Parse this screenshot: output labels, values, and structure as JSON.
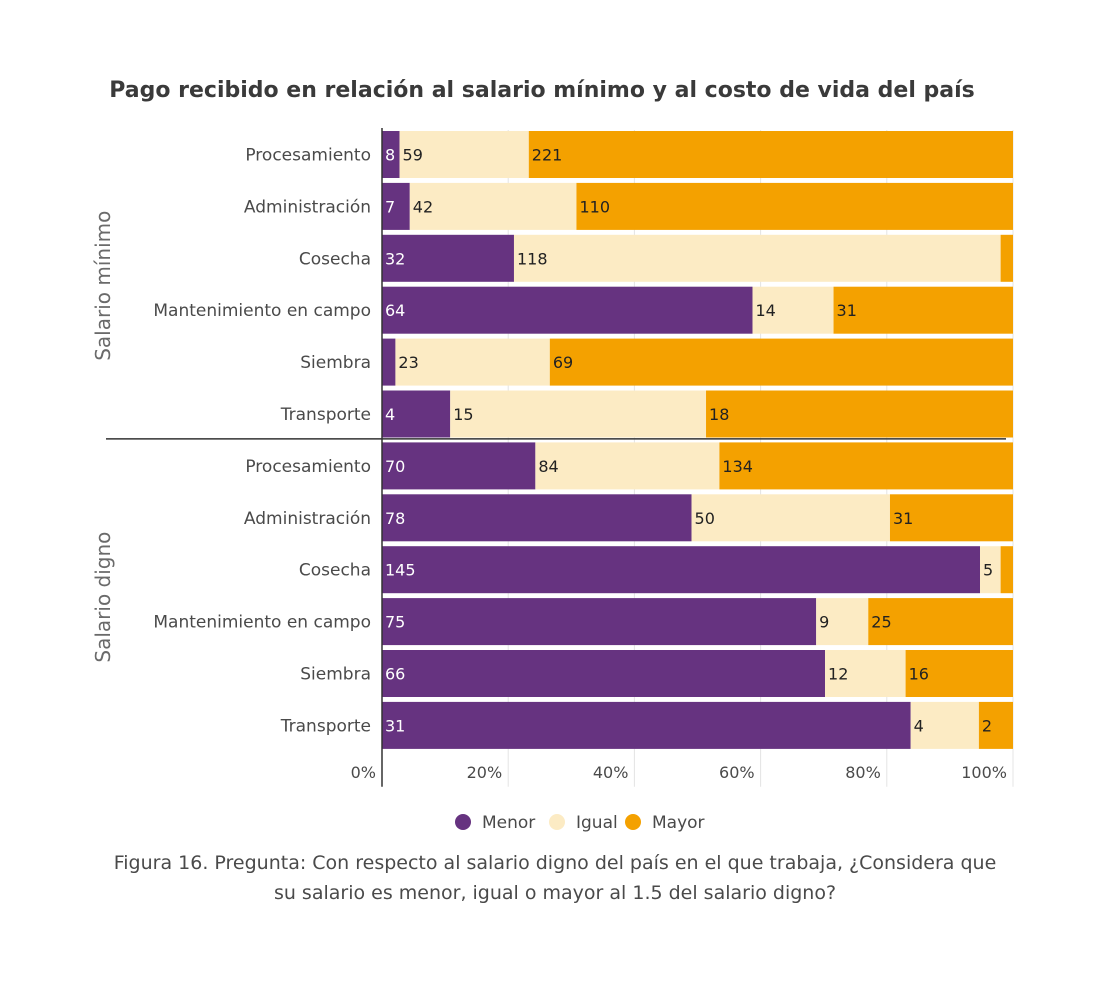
{
  "caption": "Figura 16. Pregunta:  Con respecto al salario digno del país en el que trabaja, ¿Considera que su salario es menor, igual o mayor al 1.5 del salario digno?",
  "chart_data": {
    "type": "bar",
    "orientation": "horizontal",
    "stacking": "percent",
    "title": "Pago recibido en relación al salario mínimo y al costo de vida del país",
    "xlim": [
      0,
      100
    ],
    "xticks": [
      "0%",
      "20%",
      "40%",
      "60%",
      "80%",
      "100%"
    ],
    "grid": true,
    "legend_position": "bottom",
    "colors": {
      "Menor": "#663380",
      "Igual": "#fcebc4",
      "Mayor": "#f4a100"
    },
    "series_names": [
      "Menor",
      "Igual",
      "Mayor"
    ],
    "groups": [
      {
        "label": "Salario mínimo",
        "categories": [
          "Procesamiento",
          "Administración",
          "Cosecha",
          "Mantenimiento en campo",
          "Siembra",
          "Transporte"
        ],
        "series": [
          {
            "name": "Menor",
            "values": [
              8,
              7,
              32,
              64,
              2,
              4
            ]
          },
          {
            "name": "Igual",
            "values": [
              59,
              42,
              118,
              14,
              23,
              15
            ]
          },
          {
            "name": "Mayor",
            "values": [
              221,
              110,
              3,
              31,
              69,
              18
            ]
          }
        ],
        "labels": [
          [
            "8",
            "59",
            "221"
          ],
          [
            "7",
            "42",
            "110"
          ],
          [
            "32",
            "118",
            ""
          ],
          [
            "64",
            "14",
            "31"
          ],
          [
            "",
            "23",
            "69"
          ],
          [
            "4",
            "15",
            "18"
          ]
        ]
      },
      {
        "label": "Salario digno",
        "categories": [
          "Procesamiento",
          "Administración",
          "Cosecha",
          "Mantenimiento en campo",
          "Siembra",
          "Transporte"
        ],
        "series": [
          {
            "name": "Menor",
            "values": [
              70,
              78,
              145,
              75,
              66,
              31
            ]
          },
          {
            "name": "Igual",
            "values": [
              84,
              50,
              5,
              9,
              12,
              4
            ]
          },
          {
            "name": "Mayor",
            "values": [
              134,
              31,
              3,
              25,
              16,
              2
            ]
          }
        ],
        "labels": [
          [
            "70",
            "84",
            "134"
          ],
          [
            "78",
            "50",
            "31"
          ],
          [
            "145",
            "5",
            ""
          ],
          [
            "75",
            "9",
            "25"
          ],
          [
            "66",
            "12",
            "16"
          ],
          [
            "31",
            "4",
            "2"
          ]
        ]
      }
    ]
  }
}
